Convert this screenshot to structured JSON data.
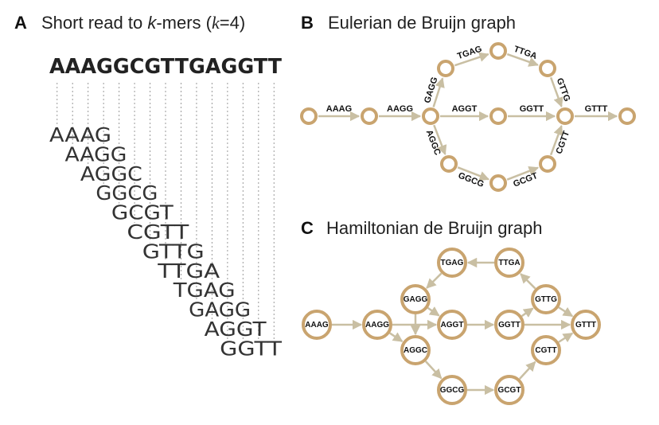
{
  "panelA": {
    "letter": "A",
    "title_pre": "Short read to ",
    "title_k": "k",
    "title_mid": "-mers (",
    "title_k2": "k",
    "title_eq": "=4)",
    "read": "AAAGGCGTTGAGGTT",
    "kmers": [
      "AAAG",
      "AAGG",
      "AGGC",
      "GGCG",
      "GCGT",
      "CGTT",
      "GTTG",
      "TTGA",
      "TGAG",
      "GAGG",
      "AGGT",
      "GGTT"
    ]
  },
  "panelB": {
    "letter": "B",
    "title": "Eulerian de Bruijn graph",
    "edges": [
      {
        "from": "b0",
        "to": "b1",
        "label": "AAAG"
      },
      {
        "from": "b1",
        "to": "b2",
        "label": "AAGG"
      },
      {
        "from": "b2",
        "to": "b3",
        "label": "GAGG"
      },
      {
        "from": "b3",
        "to": "b4",
        "label": "TGAG"
      },
      {
        "from": "b4",
        "to": "b5",
        "label": "TTGA"
      },
      {
        "from": "b5",
        "to": "b6",
        "label": "GTTG"
      },
      {
        "from": "b2",
        "to": "b8",
        "label": "AGGT"
      },
      {
        "from": "b8",
        "to": "b6",
        "label": "GGTT"
      },
      {
        "from": "b6",
        "to": "b7",
        "label": "GTTT"
      },
      {
        "from": "b2",
        "to": "b9",
        "label": "AGGC"
      },
      {
        "from": "b9",
        "to": "b10",
        "label": "GGCG"
      },
      {
        "from": "b10",
        "to": "b11",
        "label": "GCGT"
      },
      {
        "from": "b11",
        "to": "b6",
        "label": "CGTT"
      }
    ]
  },
  "panelC": {
    "letter": "C",
    "title": "Hamiltonian de Bruijn graph",
    "nodes": {
      "c_aaag": "AAAG",
      "c_aagg": "AAGG",
      "c_gagg": "GAGG",
      "c_tgag": "TGAG",
      "c_ttga": "TTGA",
      "c_gttg": "GTTG",
      "c_aggt": "AGGT",
      "c_ggtt": "GGTT",
      "c_gttt": "GTTT",
      "c_aggc": "AGGC",
      "c_ggcg": "GGCG",
      "c_gcgt": "GCGT",
      "c_cgtt": "CGTT"
    },
    "edges": [
      [
        "c_aaag",
        "c_aagg"
      ],
      [
        "c_aagg",
        "c_aggt"
      ],
      [
        "c_aagg",
        "c_aggc"
      ],
      [
        "c_gagg",
        "c_aggt"
      ],
      [
        "c_gagg",
        "c_aggc"
      ],
      [
        "c_tgag",
        "c_gagg"
      ],
      [
        "c_ttga",
        "c_tgag"
      ],
      [
        "c_gttg",
        "c_ttga"
      ],
      [
        "c_gttg",
        "c_gttt"
      ],
      [
        "c_aggt",
        "c_ggtt"
      ],
      [
        "c_ggtt",
        "c_gttg"
      ],
      [
        "c_ggtt",
        "c_gttt"
      ],
      [
        "c_aggc",
        "c_ggcg"
      ],
      [
        "c_ggcg",
        "c_gcgt"
      ],
      [
        "c_gcgt",
        "c_cgtt"
      ],
      [
        "c_cgtt",
        "c_gttt"
      ]
    ]
  }
}
